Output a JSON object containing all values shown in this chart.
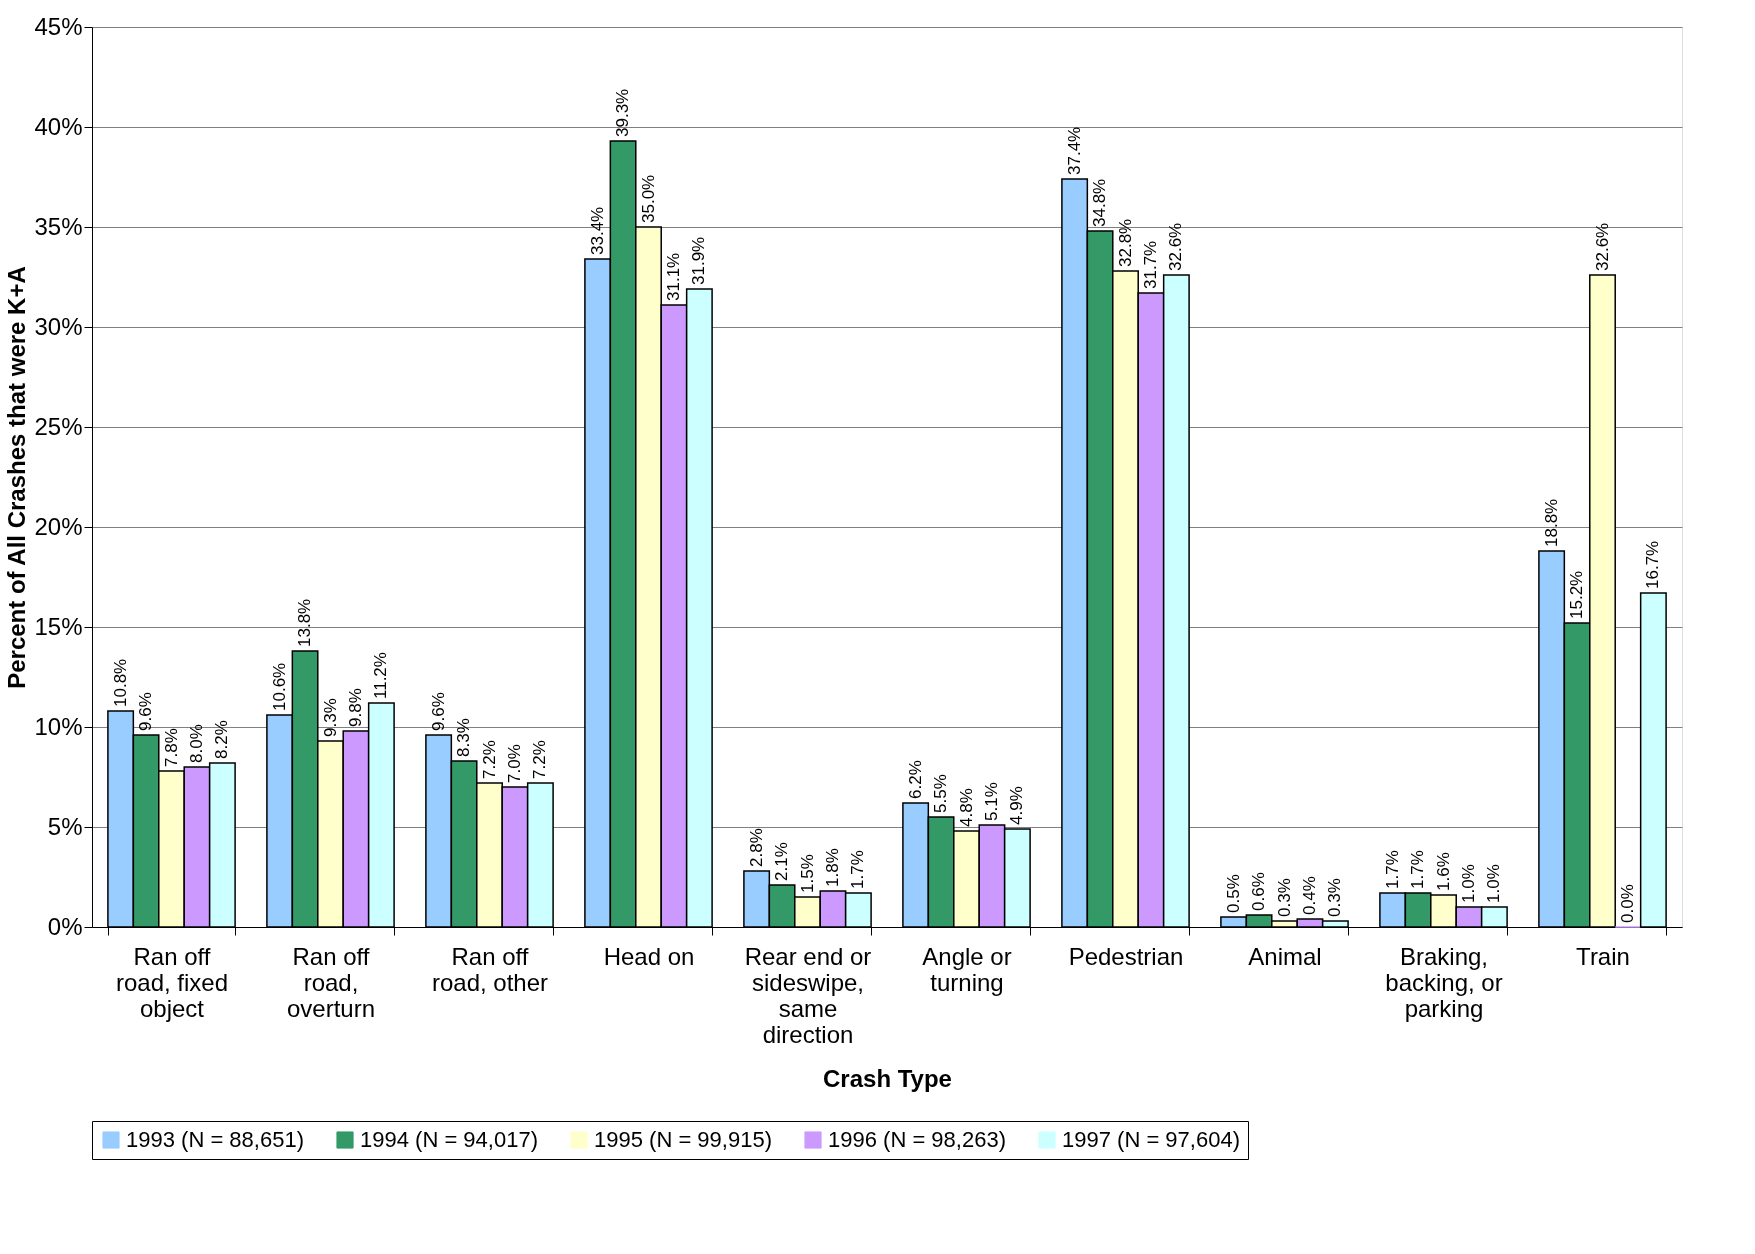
{
  "chart_data": {
    "type": "bar",
    "xlabel": "Crash Type",
    "ylabel": "Percent of All Crashes that were K+A",
    "categories": [
      "Ran off road, fixed object",
      "Ran off road, overturn",
      "Ran off road, other",
      "Head on",
      "Rear end or sideswipe, same direction",
      "Angle or turning",
      "Pedestrian",
      "Animal",
      "Braking, backing, or parking",
      "Train"
    ],
    "series": [
      {
        "name": "1993 (N = 88,651)",
        "color": "#99ccff",
        "values": [
          10.8,
          10.6,
          9.6,
          33.4,
          2.8,
          6.2,
          37.4,
          0.5,
          1.7,
          18.8
        ],
        "value_labels": [
          "10.8%",
          "10.6%",
          "9.6%",
          "33.4%",
          "2.8%",
          "6.2%",
          "37.4%",
          "0.5%",
          "1.7%",
          "18.8%"
        ]
      },
      {
        "name": "1994 (N = 94,017)",
        "color": "#339966",
        "values": [
          9.6,
          13.8,
          8.3,
          39.3,
          2.1,
          5.5,
          34.8,
          0.6,
          1.7,
          15.2
        ],
        "value_labels": [
          "9.6%",
          "13.8%",
          "8.3%",
          "39.3%",
          "2.1%",
          "5.5%",
          "34.8%",
          "0.6%",
          "1.7%",
          "15.2%"
        ]
      },
      {
        "name": "1995 (N = 99,915)",
        "color": "#ffffcc",
        "values": [
          7.8,
          9.3,
          7.2,
          35.0,
          1.5,
          4.8,
          32.8,
          0.3,
          1.6,
          32.6
        ],
        "value_labels": [
          "7.8%",
          "9.3%",
          "7.2%",
          "35.0%",
          "1.5%",
          "4.8%",
          "32.8%",
          "0.3%",
          "1.6%",
          "32.6%"
        ]
      },
      {
        "name": "1996 (N = 98,263)",
        "color": "#cc99ff",
        "values": [
          8.0,
          9.8,
          7.0,
          31.1,
          1.8,
          5.1,
          31.7,
          0.4,
          1.0,
          0.0
        ],
        "value_labels": [
          "8.0%",
          "9.8%",
          "7.0%",
          "31.1%",
          "1.8%",
          "5.1%",
          "31.7%",
          "0.4%",
          "1.0%",
          "0.0%"
        ]
      },
      {
        "name": "1997 (N = 97,604)",
        "color": "#ccffff",
        "values": [
          8.2,
          11.2,
          7.2,
          31.9,
          1.7,
          4.9,
          32.6,
          0.3,
          1.0,
          16.7
        ],
        "value_labels": [
          "8.2%",
          "11.2%",
          "7.2%",
          "31.9%",
          "1.7%",
          "4.9%",
          "32.6%",
          "0.3%",
          "1.0%",
          "16.7%"
        ]
      }
    ],
    "ylim": [
      0,
      45
    ],
    "yticks": [
      {
        "value": 0,
        "label": "0%"
      },
      {
        "value": 5,
        "label": "5%"
      },
      {
        "value": 10,
        "label": "10%"
      },
      {
        "value": 15,
        "label": "15%"
      },
      {
        "value": 20,
        "label": "20%"
      },
      {
        "value": 25,
        "label": "25%"
      },
      {
        "value": 30,
        "label": "30%"
      },
      {
        "value": 35,
        "label": "35%"
      },
      {
        "value": 40,
        "label": "40%"
      },
      {
        "value": 45,
        "label": "45%"
      }
    ],
    "grid": "y",
    "legend": "bottom"
  }
}
